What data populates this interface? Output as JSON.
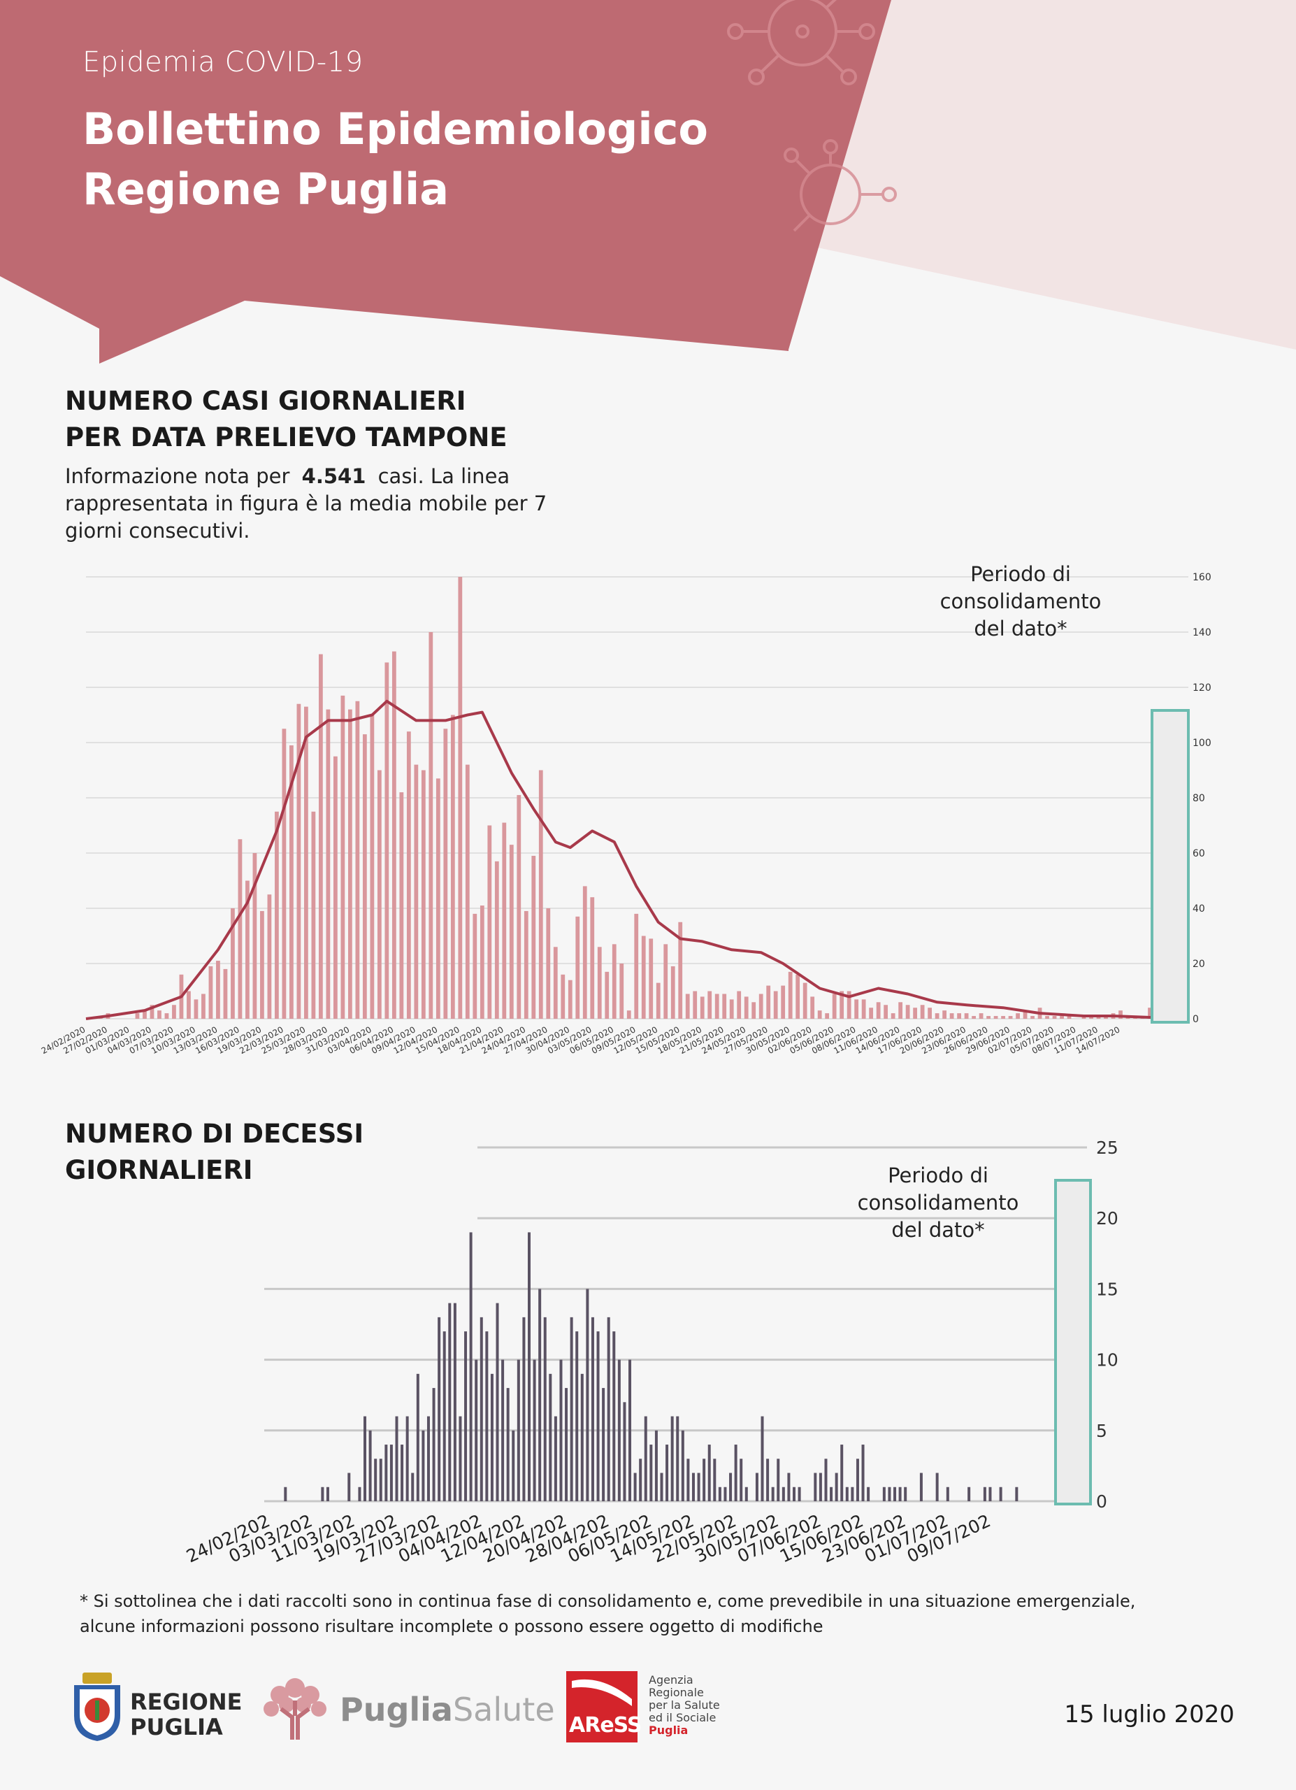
{
  "header": {
    "kicker": "Epidemia COVID-19",
    "title_line1": "Bollettino Epidemiologico",
    "title_line2": "Regione Puglia",
    "colors": {
      "band": "#be6a72",
      "band_light": "#f2e4e4"
    }
  },
  "cases_section": {
    "title_line1": "NUMERO CASI GIORNALIERI",
    "title_line2": "PER DATA PRELIEVO TAMPONE",
    "desc_before": "Informazione nota per ",
    "desc_value": "4.541",
    "desc_after": " casi. La linea rappresentata in figura è la media mobile per 7 giorni consecutivi.",
    "consolidation_line1": "Periodo di",
    "consolidation_line2": "consolidamento",
    "consolidation_line3": "del dato*"
  },
  "deaths_section": {
    "title_line1": "NUMERO DI DECESSI",
    "title_line2": "GIORNALIERI",
    "consolidation_line1": "Periodo di",
    "consolidation_line2": "consolidamento",
    "consolidation_line3": "del dato*"
  },
  "footnote_line1": "* Si sottolinea che i dati raccolti sono in continua fase di consolidamento e, come prevedibile in una situazione emergenziale,",
  "footnote_line2": "alcune informazioni possono risultare incomplete o possono essere oggetto di modifiche",
  "report_date": "15 luglio 2020",
  "logos": {
    "regione_line1": "REGIONE",
    "regione_line2": "PUGLIA",
    "puglia": "Puglia",
    "salute": "Salute",
    "aress": "AReSS",
    "agency_line1": "Agenzia",
    "agency_line2": "Regionale",
    "agency_line3": "per la Salute",
    "agency_line4": "ed il Sociale",
    "agency_line5": "Puglia"
  },
  "chart_data": [
    {
      "type": "bar",
      "start_date": "24/02/2020",
      "end_date": "14/07/2020",
      "ylim": [
        0,
        160
      ],
      "yticks": [
        0,
        20,
        40,
        60,
        80,
        100,
        120,
        140,
        160
      ],
      "xtick_labels": [
        "24/02/2020",
        "27/02/2020",
        "01/03/2020",
        "04/03/2020",
        "07/03/2020",
        "10/03/2020",
        "13/03/2020",
        "16/03/2020",
        "19/03/2020",
        "22/03/2020",
        "25/03/2020",
        "28/03/2020",
        "31/03/2020",
        "03/04/2020",
        "06/04/2020",
        "09/04/2020",
        "12/04/2020",
        "15/04/2020",
        "18/04/2020",
        "21/04/2020",
        "24/04/2020",
        "27/04/2020",
        "30/04/2020",
        "03/05/2020",
        "06/05/2020",
        "09/05/2020",
        "12/05/2020",
        "15/05/2020",
        "18/05/2020",
        "21/05/2020",
        "24/05/2020",
        "27/05/2020",
        "30/05/2020",
        "02/06/2020",
        "05/06/2020",
        "08/06/2020",
        "11/06/2020",
        "14/06/2020",
        "17/06/2020",
        "20/06/2020",
        "23/06/2020",
        "26/06/2020",
        "29/06/2020",
        "02/07/2020",
        "05/07/2020",
        "08/07/2020",
        "11/07/2020",
        "14/07/2020"
      ],
      "values": [
        0,
        0,
        1,
        2,
        0,
        0,
        0,
        2,
        3,
        5,
        3,
        2,
        5,
        16,
        10,
        7,
        9,
        19,
        21,
        18,
        40,
        65,
        50,
        60,
        39,
        45,
        75,
        105,
        99,
        114,
        113,
        75,
        132,
        112,
        95,
        117,
        112,
        115,
        103,
        110,
        90,
        129,
        133,
        82,
        104,
        92,
        90,
        140,
        87,
        105,
        110,
        160,
        92,
        38,
        41,
        70,
        57,
        71,
        63,
        81,
        39,
        59,
        90,
        40,
        26,
        16,
        14,
        37,
        48,
        44,
        26,
        17,
        27,
        20,
        3,
        38,
        30,
        29,
        13,
        27,
        19,
        35,
        9,
        10,
        8,
        10,
        9,
        9,
        7,
        10,
        8,
        6,
        9,
        12,
        10,
        12,
        17,
        16,
        13,
        8,
        3,
        2,
        9,
        10,
        10,
        7,
        7,
        4,
        6,
        5,
        2,
        6,
        5,
        4,
        5,
        4,
        2,
        3,
        2,
        2,
        2,
        1,
        2,
        1,
        1,
        1,
        1,
        2,
        3,
        1,
        4,
        1,
        1,
        1,
        1,
        0,
        1,
        1,
        1,
        1,
        2,
        3,
        1,
        1,
        1,
        4,
        1,
        0,
        0,
        1
      ],
      "series": [
        {
          "name": "",
          "kind": "moving_average_7d",
          "x": [
            0,
            3,
            8,
            13,
            18,
            22,
            26,
            30,
            33,
            36,
            39,
            41,
            45,
            49,
            52,
            54,
            58,
            61,
            64,
            66,
            69,
            72,
            75,
            78,
            81,
            84,
            88,
            92,
            95,
            100,
            104,
            108,
            112,
            116,
            120,
            125,
            130,
            136,
            140,
            145,
            150
          ],
          "values": [
            0,
            1,
            3,
            8,
            25,
            42,
            68,
            102,
            108,
            108,
            110,
            115,
            108,
            108,
            110,
            111,
            89,
            76,
            64,
            62,
            68,
            64,
            48,
            35,
            29,
            28,
            25,
            24,
            20,
            11,
            8,
            11,
            9,
            6,
            5,
            4,
            2,
            1,
            1,
            0.5,
            1
          ]
        }
      ],
      "consolidation_period": {
        "start_index": 144,
        "end_index": 150
      }
    },
    {
      "type": "bar",
      "start_date": "24/02/2020",
      "end_date": "14/07/2020",
      "ylim": [
        0,
        25
      ],
      "yticks": [
        0,
        5,
        10,
        15,
        20,
        25
      ],
      "xtick_labels": [
        "24/02/202",
        "03/03/202",
        "11/03/202",
        "19/03/202",
        "27/03/202",
        "04/04/202",
        "12/04/202",
        "20/04/202",
        "28/04/202",
        "06/05/202",
        "14/05/202",
        "22/05/202",
        "30/05/202",
        "07/06/202",
        "15/06/202",
        "23/06/202",
        "01/07/202",
        "09/07/202"
      ],
      "values": [
        0,
        0,
        0,
        0,
        1,
        0,
        0,
        0,
        0,
        0,
        0,
        1,
        1,
        0,
        0,
        0,
        2,
        0,
        1,
        6,
        5,
        3,
        3,
        4,
        4,
        6,
        4,
        6,
        2,
        9,
        5,
        6,
        8,
        13,
        12,
        14,
        14,
        6,
        12,
        19,
        10,
        13,
        12,
        9,
        14,
        10,
        8,
        5,
        10,
        13,
        19,
        10,
        15,
        13,
        9,
        6,
        10,
        8,
        13,
        12,
        9,
        15,
        13,
        12,
        8,
        13,
        12,
        10,
        7,
        10,
        2,
        3,
        6,
        4,
        5,
        2,
        4,
        6,
        6,
        5,
        3,
        2,
        2,
        3,
        4,
        3,
        1,
        1,
        2,
        4,
        3,
        1,
        0,
        2,
        6,
        3,
        1,
        3,
        1,
        2,
        1,
        1,
        0,
        0,
        2,
        2,
        3,
        1,
        2,
        4,
        1,
        1,
        3,
        4,
        1,
        0,
        0,
        1,
        1,
        1,
        1,
        1,
        0,
        0,
        2,
        0,
        0,
        2,
        0,
        1,
        0,
        0,
        0,
        1,
        0,
        0,
        1,
        1,
        0,
        1,
        0,
        0,
        1,
        0,
        0,
        0,
        0,
        0,
        0,
        0,
        0
      ],
      "consolidation_period": {
        "start_index": 136,
        "end_index": 140
      }
    }
  ]
}
